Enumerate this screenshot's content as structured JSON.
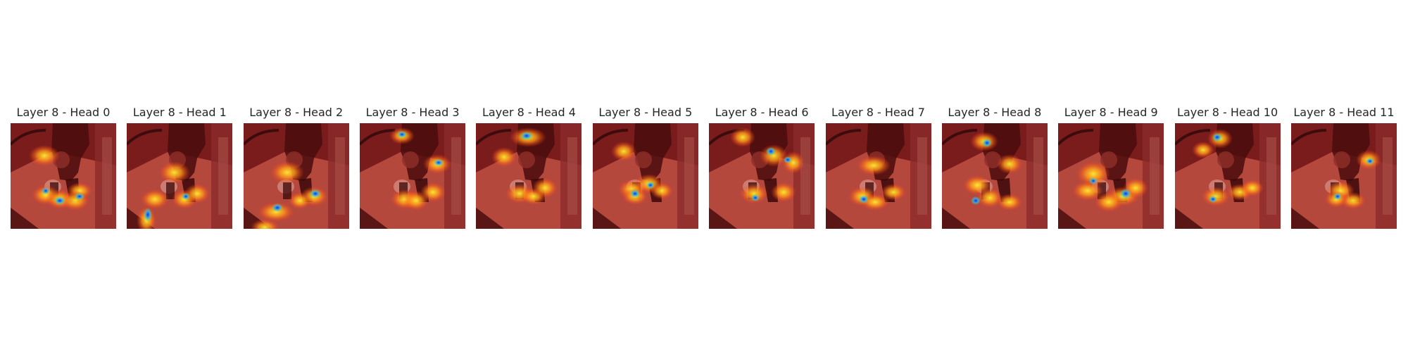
{
  "figure": {
    "panels": [
      {
        "title": "Layer 8 - Head 0",
        "hot": [
          [
            48,
            46,
            22,
            15
          ],
          [
            50,
            102,
            20,
            14
          ],
          [
            70,
            108,
            20,
            14
          ],
          [
            98,
            96,
            18,
            12
          ],
          [
            92,
            110,
            20,
            14
          ]
        ],
        "cool": [
          [
            70,
            110,
            8,
            6
          ],
          [
            50,
            96,
            6,
            5
          ],
          [
            98,
            104,
            7,
            5
          ]
        ]
      },
      {
        "title": "Layer 8 - Head 1",
        "hot": [
          [
            68,
            70,
            22,
            16
          ],
          [
            40,
            108,
            20,
            14
          ],
          [
            28,
            138,
            14,
            20
          ],
          [
            82,
            108,
            18,
            14
          ],
          [
            100,
            100,
            18,
            14
          ]
        ],
        "cool": [
          [
            30,
            130,
            6,
            10
          ],
          [
            84,
            104,
            6,
            5
          ]
        ]
      },
      {
        "title": "Layer 8 - Head 2",
        "hot": [
          [
            62,
            70,
            24,
            16
          ],
          [
            46,
            126,
            26,
            14
          ],
          [
            30,
            148,
            20,
            12
          ],
          [
            100,
            104,
            20,
            14
          ],
          [
            80,
            110,
            16,
            12
          ]
        ],
        "cool": [
          [
            48,
            120,
            8,
            6
          ],
          [
            102,
            100,
            8,
            6
          ]
        ]
      },
      {
        "title": "Layer 8 - Head 3",
        "hot": [
          [
            60,
            18,
            18,
            12
          ],
          [
            110,
            58,
            20,
            14
          ],
          [
            64,
            108,
            20,
            14
          ],
          [
            80,
            110,
            18,
            14
          ],
          [
            104,
            98,
            18,
            14
          ]
        ],
        "cool": [
          [
            60,
            16,
            7,
            5
          ],
          [
            112,
            56,
            7,
            5
          ]
        ]
      },
      {
        "title": "Layer 8 - Head 4",
        "hot": [
          [
            74,
            20,
            26,
            14
          ],
          [
            40,
            48,
            18,
            14
          ],
          [
            62,
            100,
            20,
            14
          ],
          [
            82,
            104,
            18,
            12
          ],
          [
            98,
            92,
            18,
            14
          ]
        ],
        "cool": [
          [
            72,
            18,
            9,
            6
          ]
        ]
      },
      {
        "title": "Layer 8 - Head 5",
        "hot": [
          [
            44,
            40,
            18,
            14
          ],
          [
            56,
            94,
            20,
            14
          ],
          [
            80,
            86,
            20,
            14
          ],
          [
            60,
            104,
            18,
            12
          ],
          [
            98,
            96,
            16,
            12
          ]
        ],
        "cool": [
          [
            60,
            100,
            7,
            6
          ],
          [
            82,
            88,
            6,
            5
          ]
        ]
      },
      {
        "title": "Layer 8 - Head 6",
        "hot": [
          [
            48,
            20,
            18,
            14
          ],
          [
            92,
            46,
            20,
            16
          ],
          [
            120,
            56,
            16,
            16
          ],
          [
            64,
            100,
            20,
            14
          ],
          [
            106,
            98,
            18,
            14
          ]
        ],
        "cool": [
          [
            88,
            40,
            7,
            6
          ],
          [
            112,
            52,
            6,
            5
          ],
          [
            66,
            106,
            6,
            5
          ]
        ]
      },
      {
        "title": "Layer 8 - Head 7",
        "hot": [
          [
            68,
            60,
            24,
            14
          ],
          [
            52,
            104,
            20,
            14
          ],
          [
            70,
            112,
            20,
            12
          ],
          [
            96,
            98,
            18,
            12
          ]
        ],
        "cool": [
          [
            54,
            108,
            7,
            6
          ]
        ]
      },
      {
        "title": "Layer 8 - Head 8",
        "hot": [
          [
            60,
            26,
            20,
            14
          ],
          [
            96,
            58,
            18,
            14
          ],
          [
            50,
            88,
            20,
            14
          ],
          [
            68,
            106,
            18,
            14
          ],
          [
            96,
            112,
            18,
            12
          ]
        ],
        "cool": [
          [
            64,
            28,
            7,
            6
          ],
          [
            48,
            110,
            7,
            6
          ]
        ]
      },
      {
        "title": "Layer 8 - Head 9",
        "hot": [
          [
            50,
            72,
            24,
            18
          ],
          [
            42,
            96,
            22,
            14
          ],
          [
            92,
            104,
            24,
            14
          ],
          [
            72,
            112,
            20,
            14
          ],
          [
            110,
            92,
            18,
            14
          ]
        ],
        "cool": [
          [
            96,
            100,
            8,
            7
          ],
          [
            50,
            82,
            6,
            5
          ]
        ]
      },
      {
        "title": "Layer 8 - Head 10",
        "hot": [
          [
            64,
            22,
            18,
            14
          ],
          [
            40,
            38,
            16,
            12
          ],
          [
            58,
            104,
            20,
            14
          ],
          [
            92,
            98,
            18,
            12
          ],
          [
            110,
            92,
            16,
            12
          ]
        ],
        "cool": [
          [
            60,
            20,
            7,
            6
          ],
          [
            54,
            108,
            6,
            5
          ]
        ]
      },
      {
        "title": "Layer 8 - Head 11",
        "hot": [
          [
            110,
            52,
            18,
            14
          ],
          [
            70,
            96,
            20,
            14
          ],
          [
            88,
            110,
            18,
            12
          ],
          [
            64,
            108,
            16,
            12
          ]
        ],
        "cool": [
          [
            112,
            54,
            6,
            5
          ],
          [
            66,
            104,
            6,
            5
          ]
        ]
      }
    ]
  }
}
